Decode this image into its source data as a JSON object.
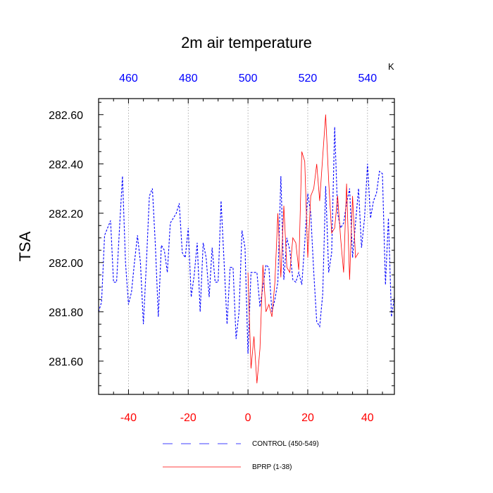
{
  "chart_data": {
    "type": "line",
    "title": "2m air temperature",
    "ylabel": "TSA",
    "top_axis_unit": "K",
    "bottom_ticks": [
      "-40",
      "-20",
      "0",
      "20",
      "40"
    ],
    "bottom_tick_values": [
      -40,
      -20,
      0,
      20,
      40
    ],
    "top_ticks": [
      "460",
      "480",
      "500",
      "520",
      "540"
    ],
    "top_tick_values": [
      460,
      480,
      500,
      520,
      540
    ],
    "left_ticks": [
      "282.60",
      "282.40",
      "282.20",
      "282.00",
      "281.80",
      "281.60"
    ],
    "left_tick_values": [
      282.6,
      282.4,
      282.2,
      282.0,
      281.8,
      281.6
    ],
    "xlim": [
      -50,
      49
    ],
    "ylim": [
      281.465,
      282.665
    ],
    "grid": "vertical dotted at major ticks",
    "legend_placement": "bottom",
    "colors": {
      "bottom_axis": "#ff0000",
      "top_axis": "#0000ff"
    },
    "series": [
      {
        "name": "CONTROL (450-549)",
        "color": "#0000ff",
        "dash": "dashed",
        "x": [
          -50,
          -49,
          -48,
          -47,
          -46,
          -45,
          -44,
          -43,
          -42,
          -41,
          -40,
          -39,
          -38,
          -37,
          -36,
          -35,
          -34,
          -33,
          -32,
          -31,
          -30,
          -29,
          -28,
          -27,
          -26,
          -25,
          -24,
          -23,
          -22,
          -21,
          -20,
          -19,
          -18,
          -17,
          -16,
          -15,
          -14,
          -13,
          -12,
          -11,
          -10,
          -9,
          -8,
          -7,
          -6,
          -5,
          -4,
          -3,
          -2,
          -1,
          0,
          1,
          2,
          3,
          4,
          5,
          6,
          7,
          8,
          9,
          10,
          11,
          12,
          13,
          14,
          15,
          16,
          17,
          18,
          19,
          20,
          21,
          22,
          23,
          24,
          25,
          26,
          27,
          28,
          29,
          30,
          31,
          32,
          33,
          34,
          35,
          36,
          37,
          38,
          39,
          40,
          41,
          42,
          43,
          44,
          45,
          46,
          47,
          48,
          49
        ],
        "y": [
          281.8,
          281.84,
          282.11,
          282.14,
          282.17,
          281.92,
          281.92,
          282.14,
          282.35,
          282.0,
          281.83,
          281.88,
          282.0,
          282.11,
          282.0,
          281.75,
          282.0,
          282.27,
          282.3,
          282.07,
          281.78,
          282.07,
          282.05,
          281.96,
          282.16,
          282.18,
          282.2,
          282.24,
          282.04,
          282.02,
          282.14,
          281.86,
          281.95,
          282.08,
          281.8,
          282.08,
          282.02,
          281.86,
          282.06,
          281.92,
          281.92,
          282.25,
          282.0,
          281.75,
          281.98,
          281.98,
          281.69,
          281.8,
          282.13,
          282.06,
          281.63,
          281.96,
          281.96,
          281.96,
          281.82,
          281.9,
          281.99,
          281.98,
          281.8,
          281.85,
          281.92,
          282.35,
          281.93,
          282.1,
          282.05,
          281.93,
          281.92,
          281.96,
          281.91,
          282.08,
          282.28,
          282.2,
          281.96,
          281.76,
          281.74,
          281.87,
          282.31,
          281.96,
          282.04,
          282.55,
          282.2,
          282.14,
          282.16,
          282.24,
          282.3,
          282.02,
          282.16,
          282.3,
          282.06,
          282.18,
          282.4,
          282.18,
          282.25,
          282.28,
          282.37,
          282.36,
          281.91,
          282.18,
          281.78,
          281.86
        ]
      },
      {
        "name": "BPRP (1-38)",
        "color": "#ff0000",
        "dash": "solid",
        "x": [
          0,
          1,
          2,
          3,
          4,
          5,
          6,
          7,
          8,
          9,
          10,
          11,
          12,
          13,
          14,
          15,
          16,
          17,
          18,
          19,
          20,
          21,
          22,
          23,
          24,
          25,
          26,
          27,
          28,
          29,
          30,
          31,
          32,
          33,
          34,
          35,
          36,
          37
        ],
        "y": [
          281.96,
          281.57,
          281.7,
          281.51,
          281.65,
          281.99,
          281.8,
          281.83,
          281.78,
          281.92,
          282.2,
          281.94,
          282.23,
          281.98,
          281.96,
          282.1,
          282.08,
          281.97,
          282.45,
          282.41,
          282.02,
          282.27,
          282.3,
          282.4,
          282.25,
          282.43,
          282.6,
          282.33,
          282.12,
          282.14,
          282.27,
          282.1,
          281.96,
          282.32,
          281.93,
          282.27,
          282.02,
          282.04
        ]
      }
    ]
  }
}
